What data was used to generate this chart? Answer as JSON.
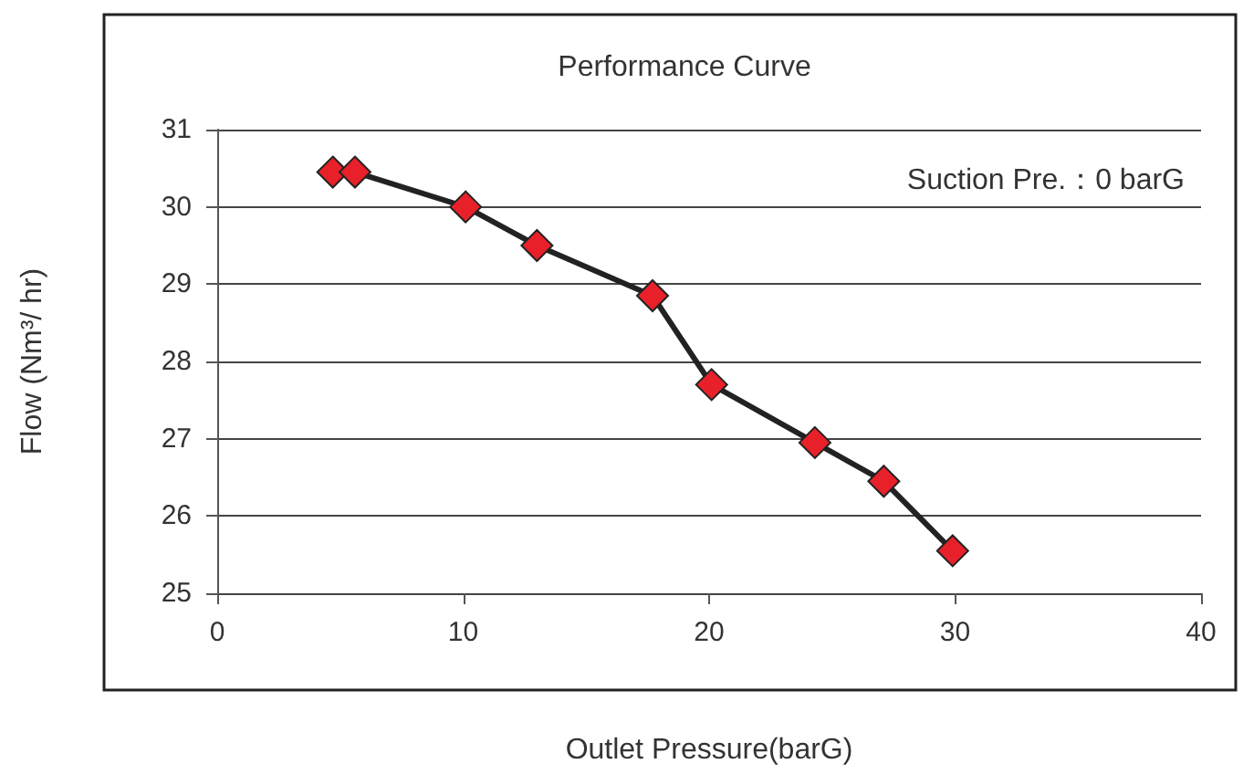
{
  "chart_data": {
    "type": "line",
    "title": "Performance Curve",
    "xlabel": "Outlet Pressure(barG)",
    "ylabel": "Flow (Nm³/ hr)",
    "annotations": [
      "Suction Pre.：0 barG"
    ],
    "x": [
      4.7,
      5.6,
      10.1,
      13.0,
      17.7,
      20.1,
      24.3,
      27.1,
      29.9
    ],
    "series": [
      {
        "color": "#e8202a",
        "values": [
          30.45,
          30.45,
          30.0,
          29.5,
          28.85,
          27.7,
          26.95,
          26.45,
          25.55
        ]
      }
    ],
    "xlim": [
      0,
      40
    ],
    "xticks": [
      0,
      10,
      20,
      30,
      40
    ],
    "ylim": [
      25,
      31
    ],
    "yticks": [
      25,
      26,
      27,
      28,
      29,
      30,
      31
    ],
    "grid": "y",
    "marker": "diamond",
    "line_style": "solid"
  }
}
